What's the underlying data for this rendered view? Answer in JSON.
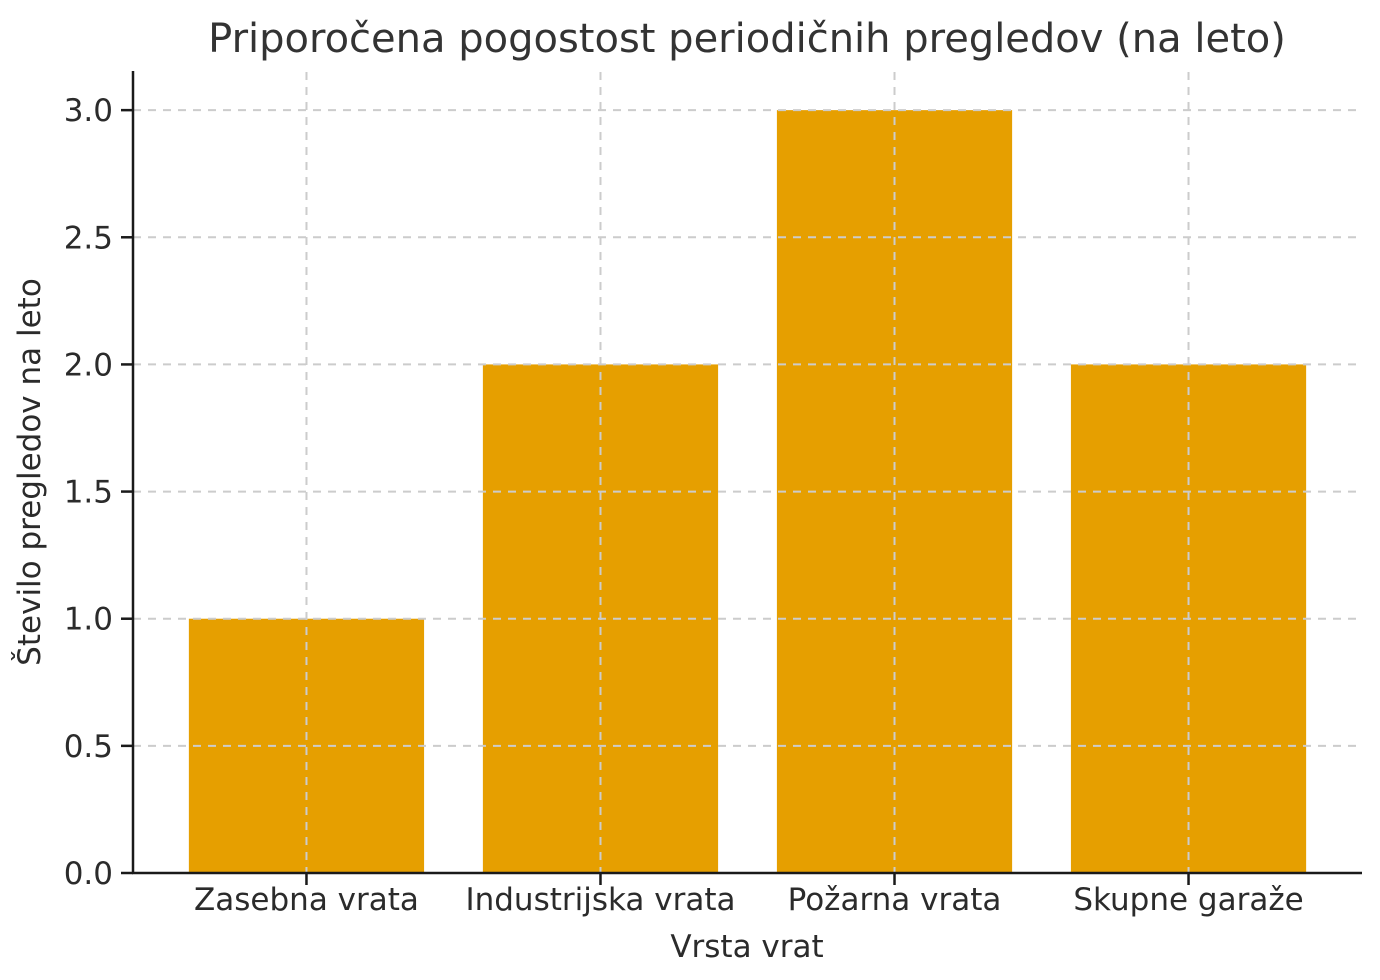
{
  "chart_data": {
    "type": "bar",
    "title": "Priporočena pogostost periodičnih pregledov (na leto)",
    "xlabel": "Vrsta vrat",
    "ylabel": "Število pregledov na leto",
    "categories": [
      "Zasebna vrata",
      "Industrijska vrata",
      "Požarna vrata",
      "Skupne garaže"
    ],
    "values": [
      1,
      2,
      3,
      2
    ],
    "ylim": [
      0,
      3.15
    ],
    "yticks": [
      "0.0",
      "0.5",
      "1.0",
      "1.5",
      "2.0",
      "2.5",
      "3.0"
    ],
    "grid": "dashed-both-axes-above-bars",
    "legend": "none",
    "colors": {
      "bar": "#E69F00",
      "grid": "#cccccc",
      "spine": "#1a1a1a",
      "text": "#2b2b2b"
    }
  }
}
